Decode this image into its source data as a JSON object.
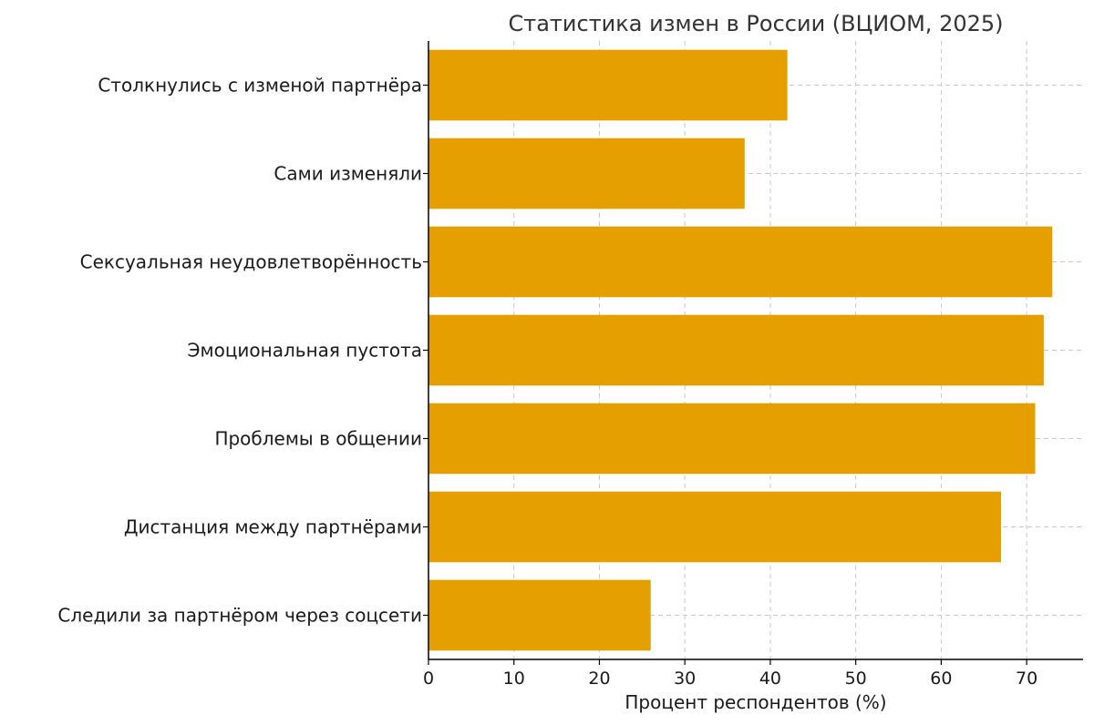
{
  "chart_data": {
    "type": "bar",
    "orientation": "horizontal",
    "title": "Статистика измен в России (ВЦИОМ, 2025)",
    "xlabel": "Процент респондентов (%)",
    "ylabel": "",
    "xlim": [
      0,
      76.6
    ],
    "xticks": [
      0,
      10,
      20,
      30,
      40,
      50,
      60,
      70
    ],
    "grid": true,
    "bar_color": "#E5A000",
    "categories": [
      "Столкнулись с изменой партнёра",
      "Сами изменяли",
      "Сексуальная неудовлетворённость",
      "Эмоциональная пустота",
      "Проблемы в общении",
      "Дистанция между партнёрами",
      "Следили за партнёром через соцсети"
    ],
    "values": [
      42,
      37,
      73,
      72,
      71,
      67,
      26
    ]
  }
}
